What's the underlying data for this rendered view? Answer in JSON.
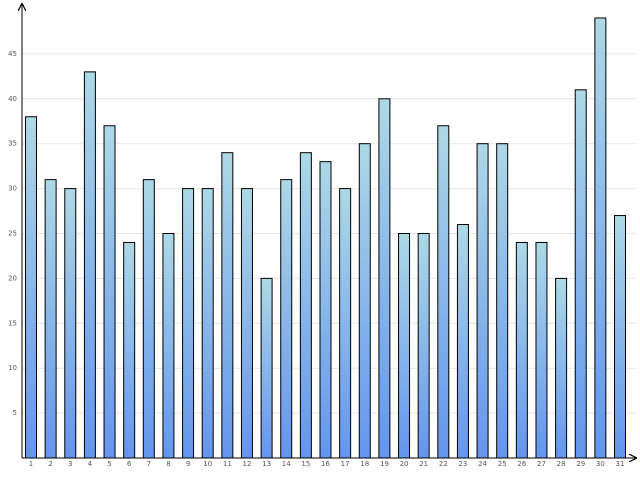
{
  "chart_data": {
    "type": "bar",
    "categories": [
      "1",
      "2",
      "3",
      "4",
      "5",
      "6",
      "7",
      "8",
      "9",
      "10",
      "11",
      "12",
      "13",
      "14",
      "15",
      "16",
      "17",
      "18",
      "19",
      "20",
      "21",
      "22",
      "23",
      "24",
      "25",
      "26",
      "27",
      "28",
      "29",
      "30",
      "31"
    ],
    "values": [
      38,
      31,
      30,
      43,
      37,
      24,
      31,
      25,
      30,
      30,
      34,
      30,
      20,
      31,
      34,
      33,
      30,
      35,
      40,
      25,
      25,
      37,
      26,
      35,
      35,
      24,
      24,
      20,
      41,
      49,
      27
    ],
    "color_top": "#add8e6",
    "color_bottom": "#6495ed",
    "ylim": [
      0,
      50
    ],
    "yticks": [
      5,
      10,
      15,
      20,
      25,
      30,
      35,
      40,
      45
    ],
    "grid": true
  }
}
